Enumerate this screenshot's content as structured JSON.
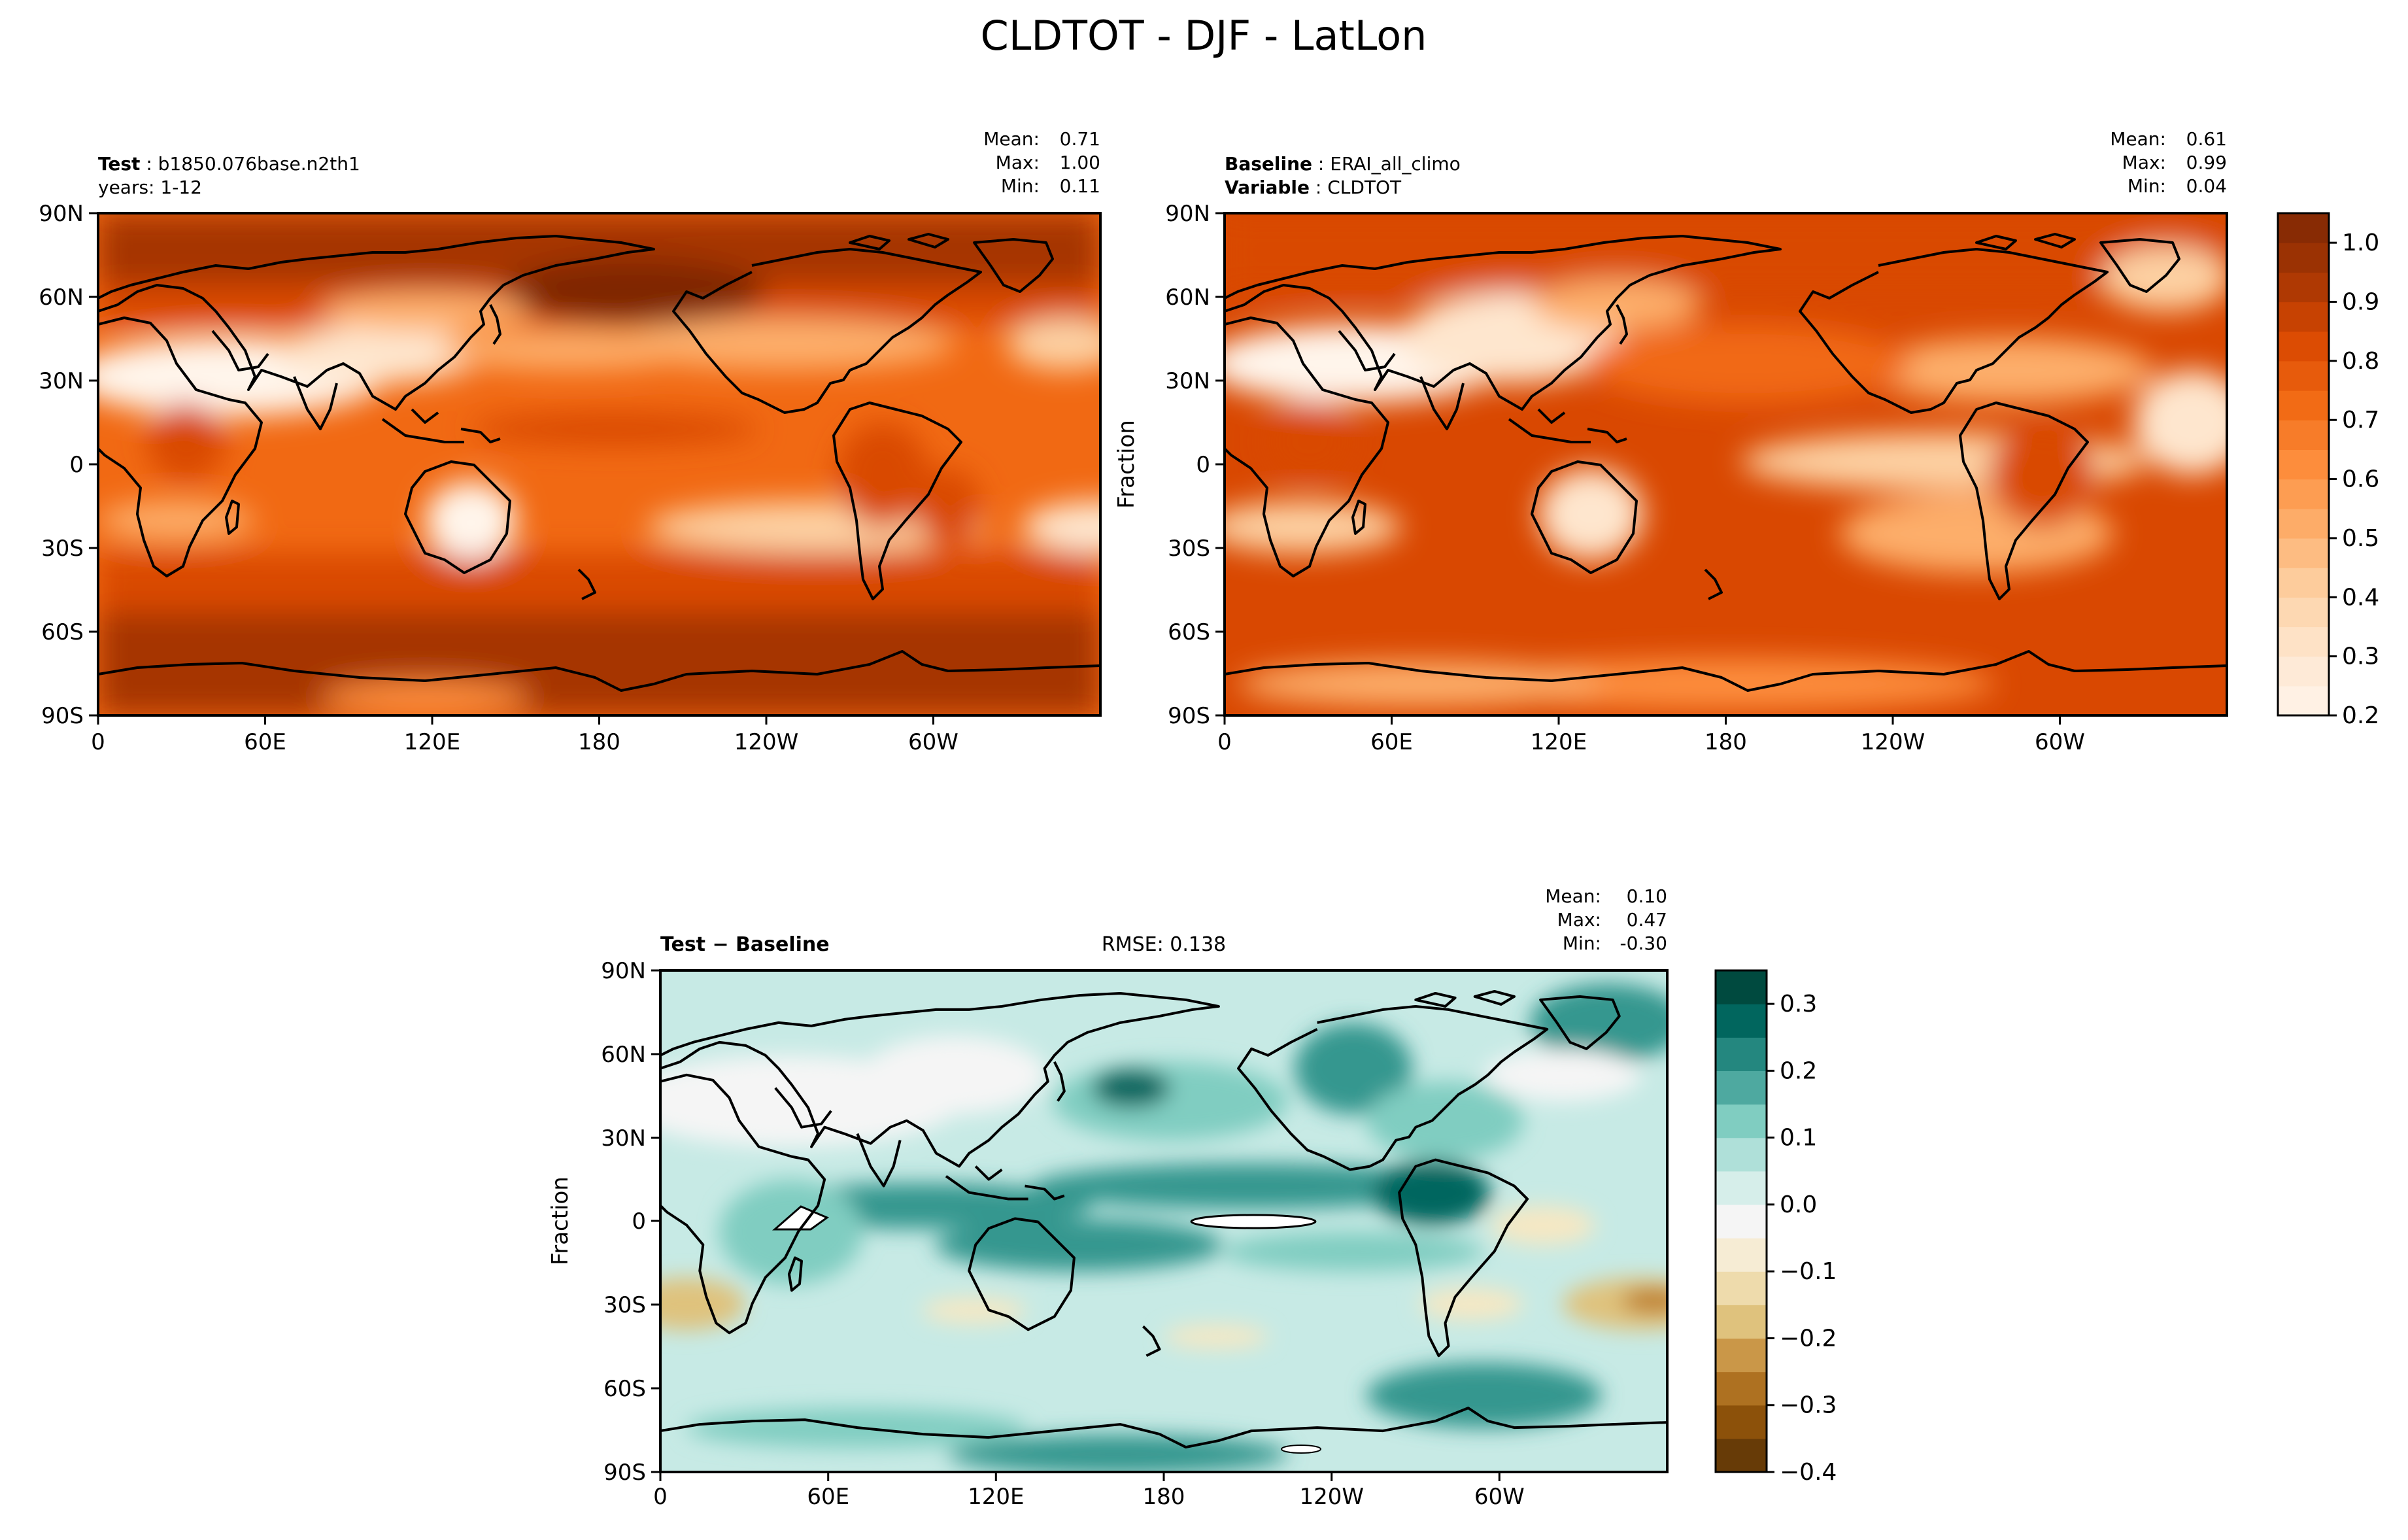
{
  "figure": {
    "title": "CLDTOT - DJF - LatLon"
  },
  "colors": {
    "orange_ramp": [
      "#fff5eb",
      "#fee6ce",
      "#fdd0a2",
      "#fdae6b",
      "#fd8d3c",
      "#f16913",
      "#d94801",
      "#a63603",
      "#7f2704"
    ],
    "brbg_ramp": [
      "#543005",
      "#8c510a",
      "#bf812d",
      "#dfc27d",
      "#f6e8c3",
      "#f5f5f5",
      "#c7eae5",
      "#80cdc1",
      "#35978f",
      "#01665e",
      "#003c30"
    ],
    "coast": "#000000",
    "white_void": "#ffffff"
  },
  "chart_data": [
    {
      "type": "heatmap",
      "panel": "test",
      "label_bold": "Test",
      "label_value": "b1850.076base.n2th1",
      "sublabel": "years: 1-12",
      "stats": {
        "mean_label": "Mean:",
        "mean": "0.71",
        "max_label": "Max:",
        "max": "1.00",
        "min_label": "Min:",
        "min": "0.11"
      },
      "variable": "CLDTOT",
      "season": "DJF",
      "value_range": [
        0.11,
        1.0
      ],
      "contour_levels": [
        0.2,
        0.25,
        0.3,
        0.35,
        0.4,
        0.45,
        0.5,
        0.55,
        0.6,
        0.65,
        0.7,
        0.75,
        0.8,
        0.85,
        0.9,
        0.95,
        1.0
      ],
      "x_ticks": [
        "0",
        "60E",
        "120E",
        "180",
        "120W",
        "60W"
      ],
      "x_range": [
        0,
        360
      ],
      "y_ticks": [
        "90N",
        "60N",
        "30N",
        "0",
        "30S",
        "60S",
        "90S"
      ],
      "y_range": [
        90,
        -90
      ],
      "ylabel": ""
    },
    {
      "type": "heatmap",
      "panel": "baseline",
      "label_bold": "Baseline",
      "label_value": "ERAI_all_climo",
      "sublabel_bold": "Variable",
      "sublabel_value": "CLDTOT",
      "stats": {
        "mean_label": "Mean:",
        "mean": "0.61",
        "max_label": "Max:",
        "max": "0.99",
        "min_label": "Min:",
        "min": "0.04"
      },
      "value_range": [
        0.04,
        0.99
      ],
      "x_ticks": [
        "0",
        "60E",
        "120E",
        "180",
        "120W",
        "60W"
      ],
      "x_range": [
        0,
        360
      ],
      "y_ticks": [
        "90N",
        "60N",
        "30N",
        "0",
        "30S",
        "60S",
        "90S"
      ],
      "y_range": [
        90,
        -90
      ],
      "ylabel": "Fraction",
      "colorbar": {
        "ticks": [
          "1.0",
          "0.9",
          "0.8",
          "0.7",
          "0.6",
          "0.5",
          "0.4",
          "0.3",
          "0.2"
        ],
        "range": [
          0.2,
          1.05
        ],
        "levels": 17
      }
    },
    {
      "type": "heatmap",
      "panel": "difference",
      "label_bold": "Test − Baseline",
      "rmse": "RMSE: 0.138",
      "stats": {
        "mean_label": "Mean:",
        "mean": "0.10",
        "max_label": "Max:",
        "max": "0.47",
        "min_label": "Min:",
        "min": "-0.30"
      },
      "value_range": [
        -0.3,
        0.47
      ],
      "x_ticks": [
        "0",
        "60E",
        "120E",
        "180",
        "120W",
        "60W"
      ],
      "x_range": [
        0,
        360
      ],
      "y_ticks": [
        "90N",
        "60N",
        "30N",
        "0",
        "30S",
        "60S",
        "90S"
      ],
      "y_range": [
        90,
        -90
      ],
      "ylabel": "Fraction",
      "colorbar": {
        "ticks": [
          "0.3",
          "0.2",
          "0.1",
          "0.0",
          "−0.1",
          "−0.2",
          "−0.3",
          "−0.4"
        ],
        "range": [
          -0.4,
          0.35
        ],
        "levels": 15
      }
    }
  ]
}
